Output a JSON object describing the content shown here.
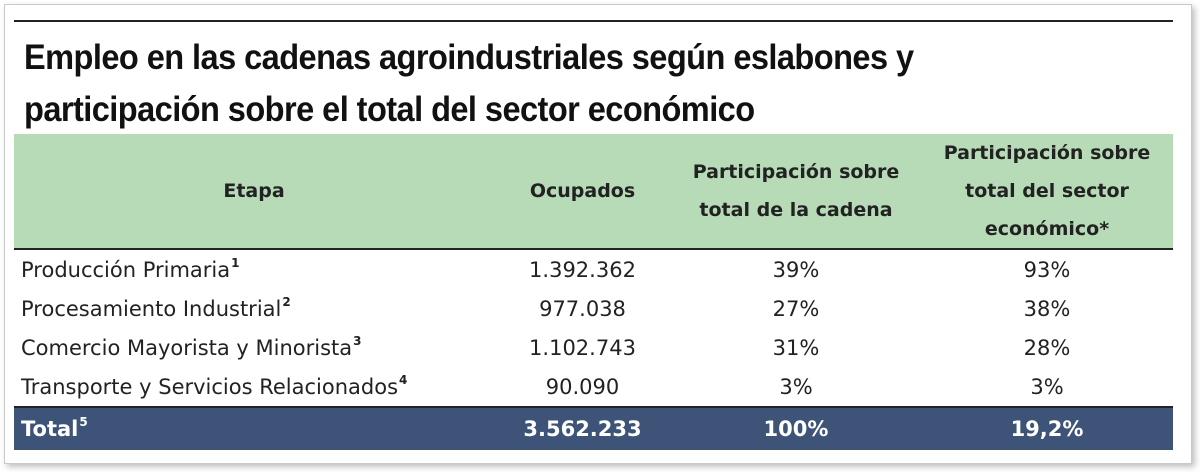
{
  "title": "Empleo en las cadenas agroindustriales según eslabones y participación sobre el total del sector económico",
  "headers": {
    "etapa": "Etapa",
    "ocupados": "Ocupados",
    "part_cadena": "Participación sobre total de la cadena",
    "part_sector": "Participación sobre total del sector económico*"
  },
  "rows": [
    {
      "etapa": "Producción Primaria",
      "note": "1",
      "ocupados": "1.392.362",
      "part_cadena": "39%",
      "part_sector": "93%"
    },
    {
      "etapa": "Procesamiento Industrial",
      "note": "2",
      "ocupados": "977.038",
      "part_cadena": "27%",
      "part_sector": "38%"
    },
    {
      "etapa": "Comercio Mayorista y Minorista",
      "note": "3",
      "ocupados": "1.102.743",
      "part_cadena": "31%",
      "part_sector": "28%"
    },
    {
      "etapa": "Transporte y Servicios Relacionados",
      "note": "4",
      "ocupados": "90.090",
      "part_cadena": "3%",
      "part_sector": "3%"
    }
  ],
  "total": {
    "etapa": "Total",
    "note": "5",
    "ocupados": "3.562.233",
    "part_cadena": "100%",
    "part_sector": "19,2%"
  },
  "colors": {
    "header_bg": "#b7dbb7",
    "total_bg": "#3d5478",
    "total_text": "#ffffff"
  }
}
